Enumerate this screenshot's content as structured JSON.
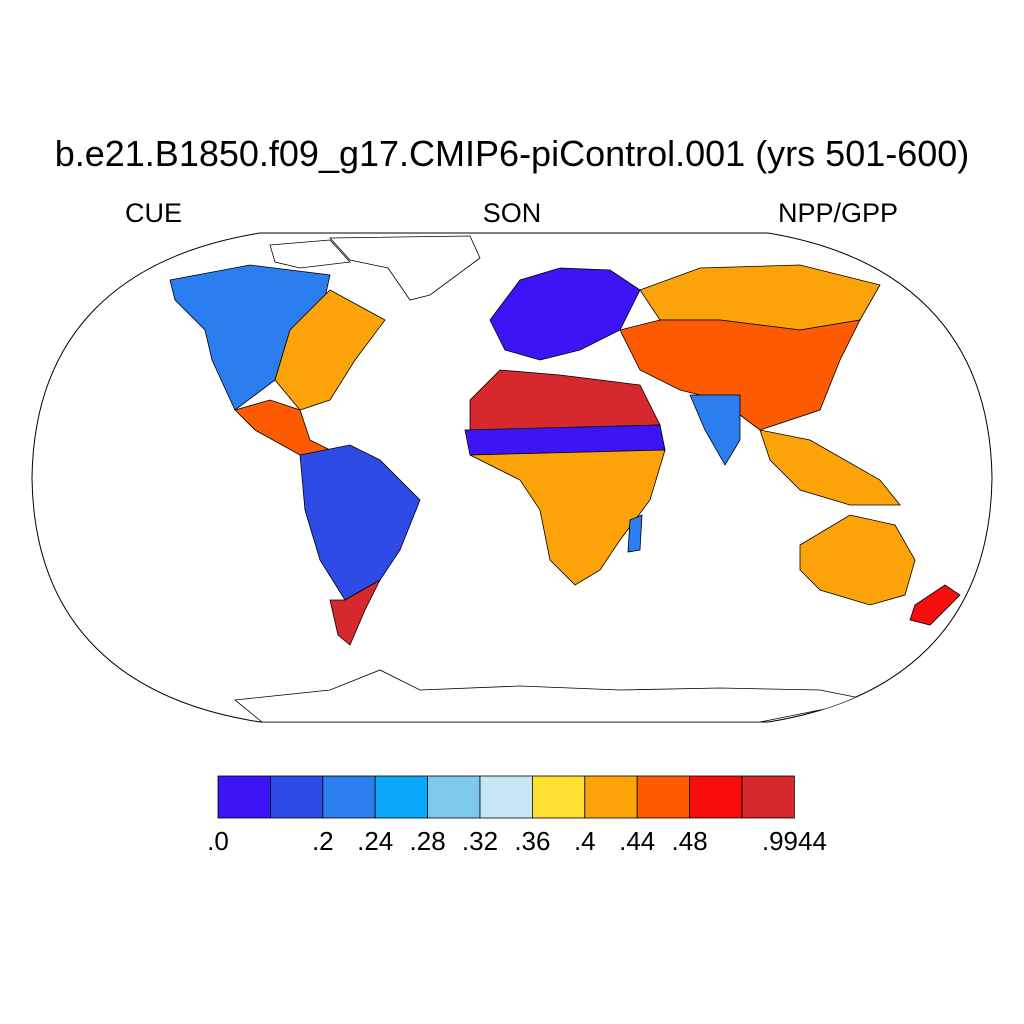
{
  "title": "b.e21.B1850.f09_g17.CMIP6-piControl.001 (yrs 501-600)",
  "left_label": "CUE",
  "center_label": "SON",
  "right_label": "NPP/GPP",
  "colorbar": {
    "colors": [
      "#3c14f5",
      "#2e4be6",
      "#2c7def",
      "#0aa8f8",
      "#7ec8ee",
      "#c7e6f6",
      "#fde030",
      "#fca309",
      "#fe5a02",
      "#f70d0d",
      "#d6292d"
    ],
    "tick_labels": [
      ".0",
      ".2",
      ".24",
      ".28",
      ".32",
      ".36",
      ".4",
      ".44",
      ".48",
      ".9944"
    ],
    "tick_box_index": [
      0,
      2,
      3,
      4,
      5,
      6,
      7,
      8,
      9,
      11
    ]
  },
  "regions": [
    {
      "name": "north-america-west",
      "color": "#2c7def"
    },
    {
      "name": "north-america-east",
      "color": "#fca309"
    },
    {
      "name": "central-america",
      "color": "#fe5a02"
    },
    {
      "name": "south-america",
      "color": "#2e4be6"
    },
    {
      "name": "patagonia",
      "color": "#d6292d"
    },
    {
      "name": "europe",
      "color": "#3c14f5"
    },
    {
      "name": "sahara",
      "color": "#d6292d"
    },
    {
      "name": "sahel",
      "color": "#3c14f5"
    },
    {
      "name": "africa",
      "color": "#fca309"
    },
    {
      "name": "asia",
      "color": "#fe5a02"
    },
    {
      "name": "siberia",
      "color": "#fca309"
    },
    {
      "name": "india",
      "color": "#2c7def"
    },
    {
      "name": "southeast-asia",
      "color": "#fca309"
    },
    {
      "name": "australia",
      "color": "#fca309"
    },
    {
      "name": "new-zealand",
      "color": "#f70d0d"
    }
  ]
}
